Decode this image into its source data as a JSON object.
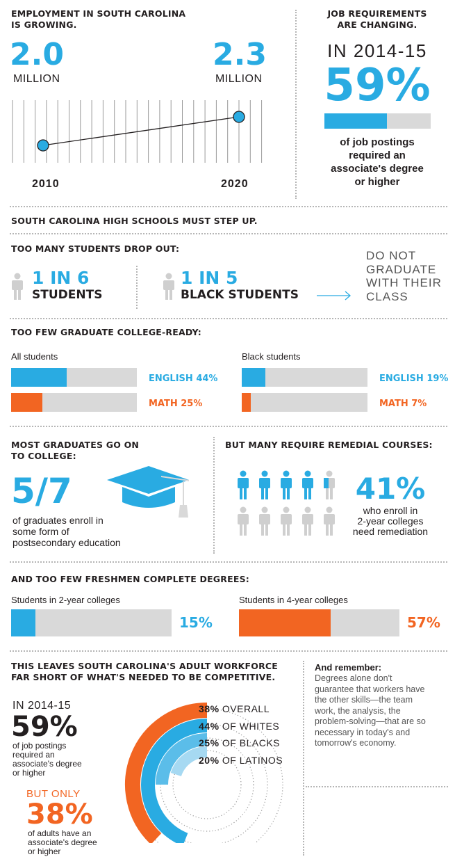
{
  "employment": {
    "title_line1": "EMPLOYMENT IN SOUTH CAROLINA",
    "title_line2": "IS GROWING.",
    "start_value": "2.0",
    "start_unit": "MILLION",
    "end_value": "2.3",
    "end_unit": "MILLION",
    "start_year": "2010",
    "end_year": "2020"
  },
  "job_requirements": {
    "title_line1": "JOB REQUIREMENTS",
    "title_line2": "ARE CHANGING.",
    "period": "IN 2014-15",
    "percent": "59%",
    "fill_fraction": 0.59,
    "desc_line1": "of job postings",
    "desc_line2": "required an",
    "desc_line3": "associate's degree",
    "desc_line4": "or higher"
  },
  "high_schools": {
    "title": "SOUTH CAROLINA HIGH SCHOOLS MUST STEP UP."
  },
  "dropout": {
    "title": "TOO MANY STUDENTS DROP OUT:",
    "stat1_ratio": "1 IN 6",
    "stat1_group": "STUDENTS",
    "stat2_ratio": "1 IN 5",
    "stat2_group": "BLACK STUDENTS",
    "outcome_line1": "DO NOT",
    "outcome_line2": "GRADUATE",
    "outcome_line3": "WITH THEIR",
    "outcome_line4": "CLASS"
  },
  "college_ready": {
    "title": "TOO FEW GRADUATE COLLEGE-READY:",
    "groups": [
      {
        "name": "All students",
        "english_label": "ENGLISH 44%",
        "english": 0.44,
        "math_label": "MATH 25%",
        "math": 0.25
      },
      {
        "name": "Black students",
        "english_label": "ENGLISH 19%",
        "english": 0.19,
        "math_label": "MATH 7%",
        "math": 0.07
      }
    ]
  },
  "go_to_college": {
    "title_line1": "MOST GRADUATES GO ON",
    "title_line2": "TO COLLEGE:",
    "fraction": "5/7",
    "desc_line1": "of graduates enroll in",
    "desc_line2": "some form of",
    "desc_line3": "postsecondary education"
  },
  "remedial": {
    "title": "BUT MANY REQUIRE REMEDIAL COURSES:",
    "percent": "41%",
    "fraction": 0.41,
    "desc_line1": "who enroll in",
    "desc_line2": "2-year colleges",
    "desc_line3": "need remediation"
  },
  "complete": {
    "title": "AND TOO FEW FRESHMEN COMPLETE DEGREES:",
    "groups": [
      {
        "name": "Students in 2-year colleges",
        "label": "15%",
        "value": 0.15
      },
      {
        "name": "Students in 4-year colleges",
        "label": "57%",
        "value": 0.57
      }
    ]
  },
  "workforce": {
    "title_line1": "THIS LEAVES SOUTH CAROLINA'S ADULT WORKFORCE",
    "title_line2": "FAR SHORT OF WHAT'S NEEDED TO BE COMPETITIVE.",
    "period": "IN 2014-15",
    "percent": "59%",
    "desc_line1": "of job postings",
    "desc_line2": "required an",
    "desc_line3": "associate's degree",
    "desc_line4": "or higher",
    "but_only": "BUT ONLY",
    "adult_percent": "38%",
    "adult_line1": "of adults have an",
    "adult_line2": "associate's degree",
    "adult_line3": "or higher",
    "rings": [
      {
        "pct": "38%",
        "label": "OVERALL",
        "value": 0.38
      },
      {
        "pct": "44%",
        "label": "OF WHITES",
        "value": 0.44
      },
      {
        "pct": "25%",
        "label": "OF BLACKS",
        "value": 0.25
      },
      {
        "pct": "20%",
        "label": "OF LATINOS",
        "value": 0.2
      }
    ]
  },
  "remember": {
    "title": "And remember:",
    "line1": "Degrees alone don't",
    "line2": "guarantee that workers have",
    "line3": "the other skills—the team",
    "line4": "work, the analysis, the",
    "line5": "problem-solving—that are so",
    "line6": "necessary in today's and",
    "line7": "tomorrow's economy."
  },
  "colors": {
    "blue": "#29abe2",
    "orange": "#f26522",
    "gray": "#d9d9d9",
    "icon_gray": "#cfcfcf"
  }
}
